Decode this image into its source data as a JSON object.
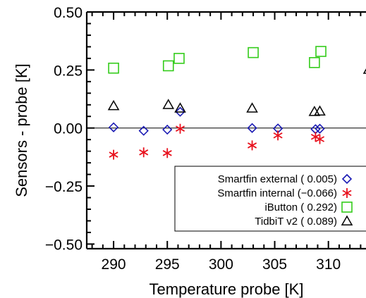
{
  "chart_data": {
    "type": "scatter",
    "xlabel": "Temperature probe [K]",
    "ylabel": "Sensors - probe [K]",
    "xlim": [
      287.5,
      313.5
    ],
    "ylim": [
      -0.52,
      0.5
    ],
    "xticks": [
      290,
      295,
      300,
      305,
      310
    ],
    "xtick_labels": [
      "290",
      "295",
      "300",
      "305",
      "310"
    ],
    "yticks": [
      -0.5,
      -0.25,
      0.0,
      0.25,
      0.5
    ],
    "ytick_labels": [
      "−0.50",
      "−0.25",
      "0.00",
      "0.25",
      "0.50"
    ],
    "zero_line": 0.0,
    "grid": false,
    "legend_position": "bottom-right",
    "series": [
      {
        "name": "Smartfin external ( 0.005)",
        "marker": "diamond",
        "color": "#1a1ab4",
        "points": [
          [
            290.0,
            0.003
          ],
          [
            292.8,
            -0.012
          ],
          [
            295.0,
            -0.007
          ],
          [
            296.2,
            0.07
          ],
          [
            302.9,
            0.0
          ],
          [
            305.3,
            -0.002
          ],
          [
            308.8,
            -0.005
          ],
          [
            309.2,
            -0.003
          ]
        ]
      },
      {
        "name": "Smartfin internal (−0.066)",
        "marker": "asterisk",
        "color": "#e8121e",
        "points": [
          [
            290.0,
            -0.115
          ],
          [
            292.8,
            -0.105
          ],
          [
            295.0,
            -0.108
          ],
          [
            296.2,
            -0.003
          ],
          [
            302.9,
            -0.075
          ],
          [
            305.3,
            -0.032
          ],
          [
            308.8,
            -0.038
          ],
          [
            309.2,
            -0.048
          ]
        ]
      },
      {
        "name": "iButton ( 0.292)",
        "marker": "square",
        "color": "#33cc1a",
        "points": [
          [
            290.0,
            0.258
          ],
          [
            295.1,
            0.268
          ],
          [
            296.1,
            0.3
          ],
          [
            303.0,
            0.325
          ],
          [
            308.7,
            0.282
          ],
          [
            309.3,
            0.33
          ]
        ]
      },
      {
        "name": "TidbiT v2 ( 0.089)",
        "marker": "triangle",
        "color": "#000000",
        "points": [
          [
            290.0,
            0.095
          ],
          [
            295.1,
            0.1
          ],
          [
            296.2,
            0.085
          ],
          [
            302.9,
            0.085
          ],
          [
            308.7,
            0.07
          ],
          [
            309.2,
            0.072
          ]
        ]
      }
    ],
    "offscale_right_markers": [
      {
        "marker": "triangle",
        "color": "#000000",
        "y": 0.252
      },
      {
        "marker": "triangle",
        "color": "#000000",
        "y": -0.24
      }
    ]
  }
}
